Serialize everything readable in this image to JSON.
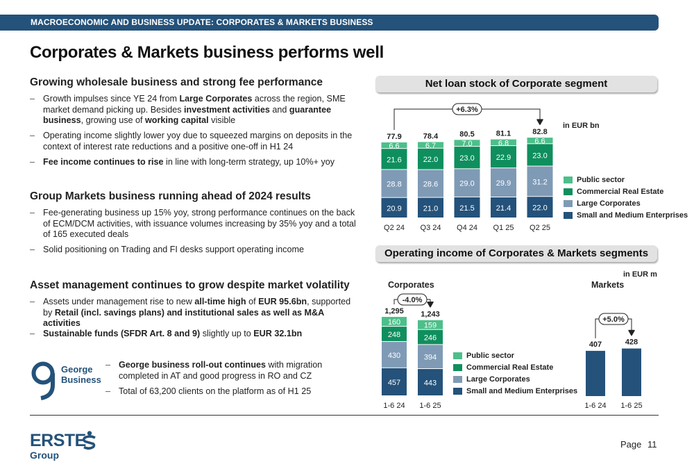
{
  "header": {
    "banner": "MACROECONOMIC AND BUSINESS UPDATE: CORPORATES & MARKETS BUSINESS",
    "title": "Corporates & Markets business performs well"
  },
  "sections": [
    {
      "heading": "Growing wholesale business and strong fee performance",
      "bullets": [
        [
          {
            "t": "Growth impulses since YE 24 from "
          },
          {
            "t": "Large Corporates",
            "b": true
          },
          {
            "t": " across the region, SME market demand picking up. Besides "
          },
          {
            "t": "investment activities",
            "b": true
          },
          {
            "t": " and "
          },
          {
            "t": "guarantee business",
            "b": true
          },
          {
            "t": ", growing use of "
          },
          {
            "t": "working capital",
            "b": true
          },
          {
            "t": " visible"
          }
        ],
        [
          {
            "t": "Operating income slightly lower yoy due to squeezed margins on deposits in the context of interest rate reductions and a positive one-off in H1 24"
          }
        ],
        [
          {
            "t": "Fee income continues to rise",
            "b": true
          },
          {
            "t": " in line with long-term strategy, up 10%+ yoy"
          }
        ]
      ]
    },
    {
      "heading": "Group Markets business running ahead of 2024 results",
      "bullets": [
        [
          {
            "t": "Fee-generating business up 15% yoy, strong performance continues on the back of ECM/DCM activities, with issuance volumes increasing by 35% yoy and a total of 165 executed deals"
          }
        ],
        [
          {
            "t": "Solid positioning on Trading and FI desks support operating income"
          }
        ]
      ]
    },
    {
      "heading": "Asset management continues to grow despite market volatility",
      "bullets": [
        [
          {
            "t": "Assets under management rise to new "
          },
          {
            "t": "all-time high",
            "b": true
          },
          {
            "t": " of "
          },
          {
            "t": "EUR 95.6bn",
            "b": true
          },
          {
            "t": ", supported by "
          },
          {
            "t": "Retail (incl. savings plans) and institutional sales as well as M&A activities",
            "b": true
          }
        ],
        [
          {
            "t": "Sustainable funds (SFDR Art. 8 and 9)",
            "b": true
          },
          {
            "t": " slightly up to "
          },
          {
            "t": "EUR 32.1bn",
            "b": true
          }
        ]
      ]
    }
  ],
  "george": {
    "logo_line1": "George",
    "logo_line2": "Business",
    "bullets": [
      [
        {
          "t": "George business roll-out continues",
          "b": true
        },
        {
          "t": " with migration completed in AT and good progress in RO and CZ"
        }
      ],
      [
        {
          "t": "Total of 63,200 clients on the platform as of H1 25"
        }
      ]
    ]
  },
  "colors": {
    "navy": "#24527a",
    "public_sector": "#4dbf8a",
    "commercial_real_estate": "#0f8f5e",
    "large_corporates": "#7f9ab5",
    "sme": "#24527a"
  },
  "legend": [
    "Public sector",
    "Commercial Real Estate",
    "Large Corporates",
    "Small and Medium Enterprises"
  ],
  "chart_data": [
    {
      "type": "bar",
      "stacked": true,
      "title": "Net loan stock of Corporate segment",
      "unit": "in EUR bn",
      "categories": [
        "Q2 24",
        "Q3 24",
        "Q4 24",
        "Q1 25",
        "Q2 25"
      ],
      "totals": [
        "77.9",
        "78.4",
        "80.5",
        "81.1",
        "82.8"
      ],
      "series": [
        {
          "name": "Small and Medium Enterprises",
          "values": [
            20.9,
            21.0,
            21.5,
            21.4,
            22.0
          ]
        },
        {
          "name": "Large Corporates",
          "values": [
            28.8,
            28.6,
            29.0,
            29.9,
            31.2
          ]
        },
        {
          "name": "Commercial Real Estate",
          "values": [
            21.6,
            22.0,
            23.0,
            22.9,
            23.0
          ]
        },
        {
          "name": "Public sector",
          "values": [
            6.6,
            6.7,
            7.0,
            6.8,
            6.6
          ]
        }
      ],
      "annotation": "+6.3%"
    },
    {
      "type": "bar",
      "stacked": true,
      "title": "Operating income of Corporates & Markets segments",
      "subtitle": "Corporates",
      "unit": "in EUR m",
      "categories": [
        "1-6 24",
        "1-6 25"
      ],
      "totals": [
        "1,295",
        "1,243"
      ],
      "series": [
        {
          "name": "Small and Medium Enterprises",
          "values": [
            457,
            443
          ]
        },
        {
          "name": "Large Corporates",
          "values": [
            430,
            394
          ]
        },
        {
          "name": "Commercial Real Estate",
          "values": [
            248,
            246
          ]
        },
        {
          "name": "Public sector",
          "values": [
            160,
            159
          ]
        }
      ],
      "annotation": "-4.0%"
    },
    {
      "type": "bar",
      "subtitle": "Markets",
      "categories": [
        "1-6 24",
        "1-6 25"
      ],
      "values": [
        407,
        428
      ],
      "annotation": "+5.0%"
    }
  ],
  "footer": {
    "brand": "ERSTE",
    "brand_sub": "Group",
    "page_label": "Page",
    "page_number": "11"
  }
}
